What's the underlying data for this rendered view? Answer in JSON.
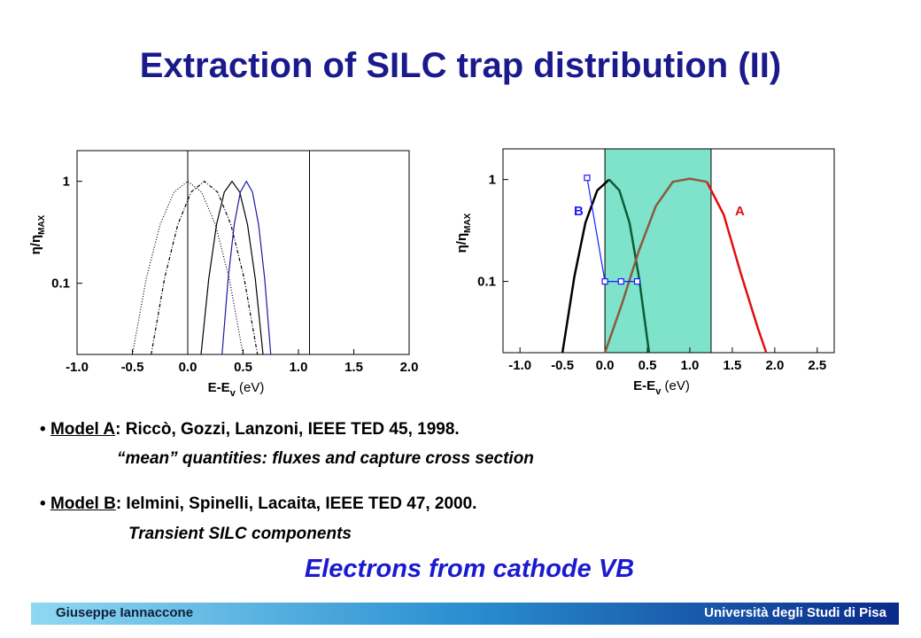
{
  "title": "Extraction of SILC trap distribution (II)",
  "chart_data": [
    {
      "type": "line",
      "y_log": true,
      "xlim": [
        -1.0,
        2.0
      ],
      "ylim": [
        0.02,
        2
      ],
      "xticks": [
        {
          "value": -1.0,
          "label": "-1.0"
        },
        -0.5,
        {
          "value": 0.0,
          "label": "0.0"
        },
        0.5,
        {
          "value": 1.0,
          "label": "1.0"
        },
        1.5,
        {
          "value": 2.0,
          "label": "2.0"
        }
      ],
      "yticks": [
        0.1,
        1
      ],
      "x_label": {
        "text": "E-E",
        "sub": "v",
        "suffix": " (eV)"
      },
      "y_label": {
        "text": "η/η",
        "sub": "MAX"
      },
      "vlines": [
        0,
        1.1
      ],
      "series": [
        {
          "color": "#000000",
          "dash": "1,2",
          "x": [
            -0.5,
            -0.375,
            -0.25,
            -0.125,
            0,
            0.125,
            0.25,
            0.375,
            0.5
          ],
          "values": [
            0.02,
            0.111,
            0.376,
            0.783,
            1,
            0.783,
            0.376,
            0.111,
            0.02
          ]
        },
        {
          "color": "#000000",
          "dash": "4,2,1,2",
          "x": [
            -0.33,
            -0.21,
            -0.09,
            0.03,
            0.15,
            0.27,
            0.39,
            0.51,
            0.63
          ],
          "values": [
            0.02,
            0.111,
            0.376,
            0.783,
            1,
            0.783,
            0.376,
            0.111,
            0.02
          ]
        },
        {
          "color": "#000000",
          "x": [
            0.12,
            0.19,
            0.26,
            0.33,
            0.4,
            0.47,
            0.54,
            0.61,
            0.68
          ],
          "values": [
            0.02,
            0.111,
            0.376,
            0.783,
            1,
            0.783,
            0.376,
            0.111,
            0.02
          ]
        },
        {
          "color": "#1a1aa0",
          "x": [
            0.31,
            0.365,
            0.42,
            0.475,
            0.53,
            0.585,
            0.64,
            0.695,
            0.75
          ],
          "values": [
            0.02,
            0.111,
            0.376,
            0.783,
            1,
            0.783,
            0.376,
            0.111,
            0.02
          ]
        }
      ]
    },
    {
      "type": "line",
      "y_log": true,
      "xlim": [
        -1.2,
        2.7
      ],
      "ylim": [
        0.02,
        2
      ],
      "xticks": [
        {
          "value": -1.0,
          "label": "-1.0"
        },
        -0.5,
        {
          "value": 0.0,
          "label": "0.0"
        },
        0.5,
        {
          "value": 1.0,
          "label": "1.0"
        },
        1.5,
        {
          "value": 2.0,
          "label": "2.0"
        },
        2.5
      ],
      "yticks": [
        0.1,
        1
      ],
      "x_label": {
        "text": "E-E",
        "sub": "v",
        "suffix": " (eV)"
      },
      "y_label": {
        "text": "η/η",
        "sub": "MAX"
      },
      "shaded_region": {
        "range": [
          0,
          1.25
        ],
        "color": "#7fe3cc"
      },
      "annotations": [
        {
          "text": "B",
          "color": "#1a1aff"
        },
        {
          "text": "A",
          "color": "#e01010"
        }
      ],
      "series": [
        {
          "color": "#000000",
          "width": 2.5,
          "x": [
            -0.5,
            -0.36,
            -0.23,
            -0.09,
            0.05
          ],
          "values": [
            0.02,
            0.111,
            0.376,
            0.783,
            1
          ]
        },
        {
          "color": "#0d5c3a",
          "width": 2.5,
          "x": [
            0.05,
            0.17,
            0.29,
            0.4,
            0.52
          ],
          "values": [
            1,
            0.783,
            0.376,
            0.111,
            0.02
          ]
        },
        {
          "color": "#8b5a3c",
          "width": 2.5,
          "x": [
            0,
            0.2,
            0.4,
            0.6,
            0.8,
            1.0,
            1.2
          ],
          "values": [
            0.02,
            0.06,
            0.2,
            0.55,
            0.95,
            1.02,
            0.95
          ]
        },
        {
          "color": "#e01010",
          "width": 2.5,
          "x": [
            1.2,
            1.4,
            1.6,
            1.8,
            1.9
          ],
          "values": [
            0.95,
            0.45,
            0.12,
            0.035,
            0.02
          ]
        },
        {
          "color": "#1a1aff",
          "markers": true,
          "x": [
            -0.21,
            0.0,
            0.19,
            0.38
          ],
          "values": [
            1.04,
            0.1,
            0.1,
            0.1
          ]
        }
      ]
    }
  ],
  "bullets": [
    {
      "label": "Model A",
      "text": ": Riccò, Gozzi, Lanzoni, IEEE TED 45, 1998.",
      "detail": "“mean” quantities: fluxes and capture cross section"
    },
    {
      "label": "Model B",
      "text": ": Ielmini, Spinelli, Lacaita, IEEE TED 47, 2000.",
      "detail": "Transient SILC components"
    }
  ],
  "highlight": "Electrons from cathode VB",
  "footer": {
    "author": "Giuseppe Iannaccone",
    "institution": "Università degli Studi di Pisa"
  }
}
